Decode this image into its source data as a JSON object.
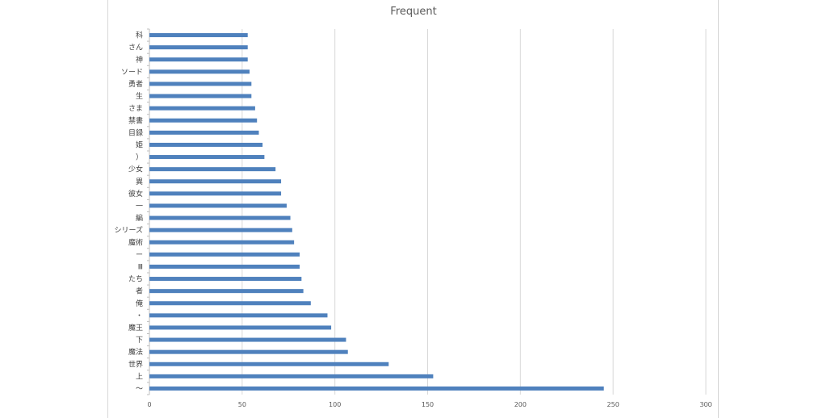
{
  "chart_data": {
    "type": "bar",
    "orientation": "horizontal",
    "title": "Frequent",
    "xlim": [
      0,
      300
    ],
    "x_ticks": [
      "0",
      "50",
      "100",
      "150",
      "200",
      "250",
      "300"
    ],
    "grid": true,
    "legend": "none",
    "bar_color": "#4f81bd",
    "categories": [
      "科",
      "さん",
      "神",
      "ソード",
      "勇者",
      "生",
      "さま",
      "禁書",
      "目録",
      "姫",
      "）",
      "少女",
      "異",
      "彼女",
      "一",
      "編",
      "シリーズ",
      "魔術",
      "ー",
      "Ⅲ",
      "たち",
      "者",
      "俺",
      "・",
      "魔王",
      "下",
      "魔法",
      "世界",
      "上",
      "～"
    ],
    "values": [
      53,
      53,
      53,
      54,
      55,
      55,
      57,
      58,
      59,
      61,
      62,
      68,
      71,
      71,
      74,
      76,
      77,
      78,
      81,
      81,
      82,
      83,
      87,
      96,
      98,
      106,
      107,
      129,
      153,
      245
    ]
  }
}
